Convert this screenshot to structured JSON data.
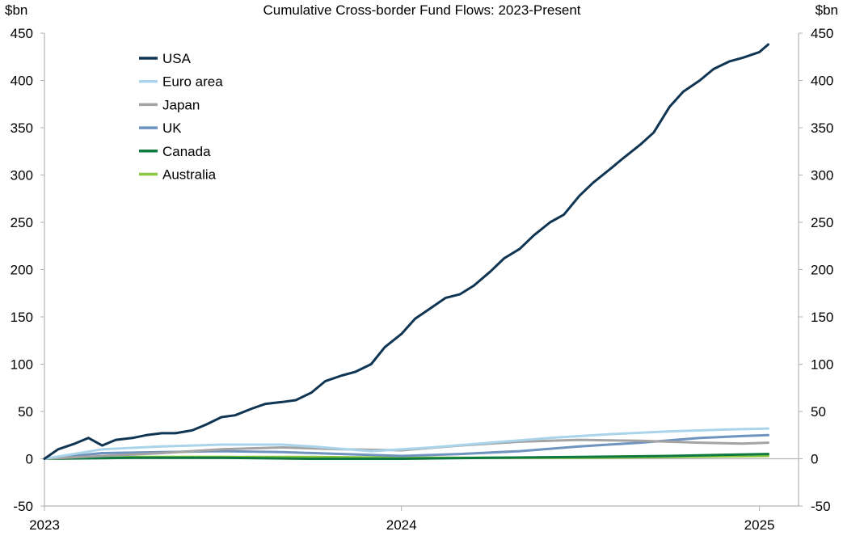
{
  "chart_data": {
    "type": "line",
    "title": "Cumulative Cross-border Fund Flows: 2023-Present",
    "ylabel_left": "$bn",
    "ylabel_right": "$bn",
    "ylim": [
      -50,
      450
    ],
    "y_ticks": [
      -50,
      0,
      50,
      100,
      150,
      200,
      250,
      300,
      350,
      400,
      450
    ],
    "x_ticks": [
      "2023",
      "2024",
      "2025"
    ],
    "x_tick_values": [
      "2023-01-01",
      "2024-01-01",
      "2025-01-01"
    ],
    "xlim": [
      "2023-01-01",
      "2025-02-10"
    ],
    "legend_position": "top-left",
    "grid": false,
    "series": [
      {
        "name": "USA",
        "color": "#0f3553",
        "x": [
          "2023-01-01",
          "2023-01-15",
          "2023-02-01",
          "2023-02-15",
          "2023-03-01",
          "2023-03-15",
          "2023-04-01",
          "2023-04-15",
          "2023-05-01",
          "2023-05-15",
          "2023-06-01",
          "2023-06-15",
          "2023-07-01",
          "2023-07-15",
          "2023-08-01",
          "2023-08-15",
          "2023-09-01",
          "2023-09-15",
          "2023-10-01",
          "2023-10-15",
          "2023-11-01",
          "2023-11-15",
          "2023-12-01",
          "2023-12-15",
          "2024-01-01",
          "2024-01-15",
          "2024-02-01",
          "2024-02-15",
          "2024-03-01",
          "2024-03-15",
          "2024-04-01",
          "2024-04-15",
          "2024-05-01",
          "2024-05-15",
          "2024-06-01",
          "2024-06-15",
          "2024-07-01",
          "2024-07-15",
          "2024-08-01",
          "2024-08-15",
          "2024-09-01",
          "2024-09-15",
          "2024-10-01",
          "2024-10-15",
          "2024-11-01",
          "2024-11-15",
          "2024-12-01",
          "2024-12-15",
          "2025-01-01",
          "2025-01-10"
        ],
        "values": [
          0,
          10,
          16,
          22,
          14,
          20,
          22,
          25,
          27,
          27,
          30,
          36,
          44,
          46,
          53,
          58,
          60,
          62,
          70,
          82,
          88,
          92,
          100,
          118,
          132,
          148,
          160,
          170,
          174,
          183,
          198,
          212,
          222,
          236,
          250,
          258,
          278,
          292,
          306,
          318,
          332,
          345,
          372,
          388,
          400,
          412,
          420,
          424,
          430,
          438
        ]
      },
      {
        "name": "Euro area",
        "color": "#a9d4ea",
        "x": [
          "2023-01-01",
          "2023-03-01",
          "2023-05-01",
          "2023-07-01",
          "2023-09-01",
          "2023-10-01",
          "2023-12-01",
          "2024-02-01",
          "2024-04-01",
          "2024-06-01",
          "2024-08-01",
          "2024-10-01",
          "2024-12-01",
          "2025-01-10"
        ],
        "values": [
          0,
          10,
          13,
          15,
          15,
          13,
          8,
          12,
          17,
          22,
          26,
          29,
          31,
          32
        ]
      },
      {
        "name": "Japan",
        "color": "#a3a3a3",
        "x": [
          "2023-01-01",
          "2023-03-01",
          "2023-05-01",
          "2023-07-01",
          "2023-09-01",
          "2023-11-01",
          "2024-01-01",
          "2024-03-01",
          "2024-05-01",
          "2024-07-01",
          "2024-09-01",
          "2024-11-01",
          "2024-12-15",
          "2025-01-10"
        ],
        "values": [
          0,
          3,
          6,
          10,
          12,
          10,
          9,
          14,
          18,
          20,
          19,
          17,
          16,
          17
        ]
      },
      {
        "name": "UK",
        "color": "#6f93bf",
        "x": [
          "2023-01-01",
          "2023-03-01",
          "2023-05-01",
          "2023-07-01",
          "2023-09-01",
          "2023-11-01",
          "2024-01-01",
          "2024-03-01",
          "2024-05-01",
          "2024-07-01",
          "2024-09-01",
          "2024-11-01",
          "2024-12-15",
          "2025-01-10"
        ],
        "values": [
          0,
          6,
          7,
          8,
          7,
          5,
          3,
          5,
          8,
          13,
          17,
          22,
          24,
          25
        ]
      },
      {
        "name": "Canada",
        "color": "#0e7a40",
        "x": [
          "2023-01-01",
          "2023-04-01",
          "2023-07-01",
          "2023-10-01",
          "2024-01-01",
          "2024-04-01",
          "2024-07-01",
          "2024-10-01",
          "2025-01-10"
        ],
        "values": [
          0,
          1,
          1,
          0,
          0,
          1,
          2,
          3,
          5
        ]
      },
      {
        "name": "Australia",
        "color": "#8ac640",
        "x": [
          "2023-01-01",
          "2023-04-01",
          "2023-07-01",
          "2023-10-01",
          "2024-01-01",
          "2024-04-01",
          "2024-07-01",
          "2024-10-01",
          "2025-01-10"
        ],
        "values": [
          0,
          2,
          2,
          2,
          1,
          1,
          1,
          2,
          3
        ]
      }
    ]
  }
}
